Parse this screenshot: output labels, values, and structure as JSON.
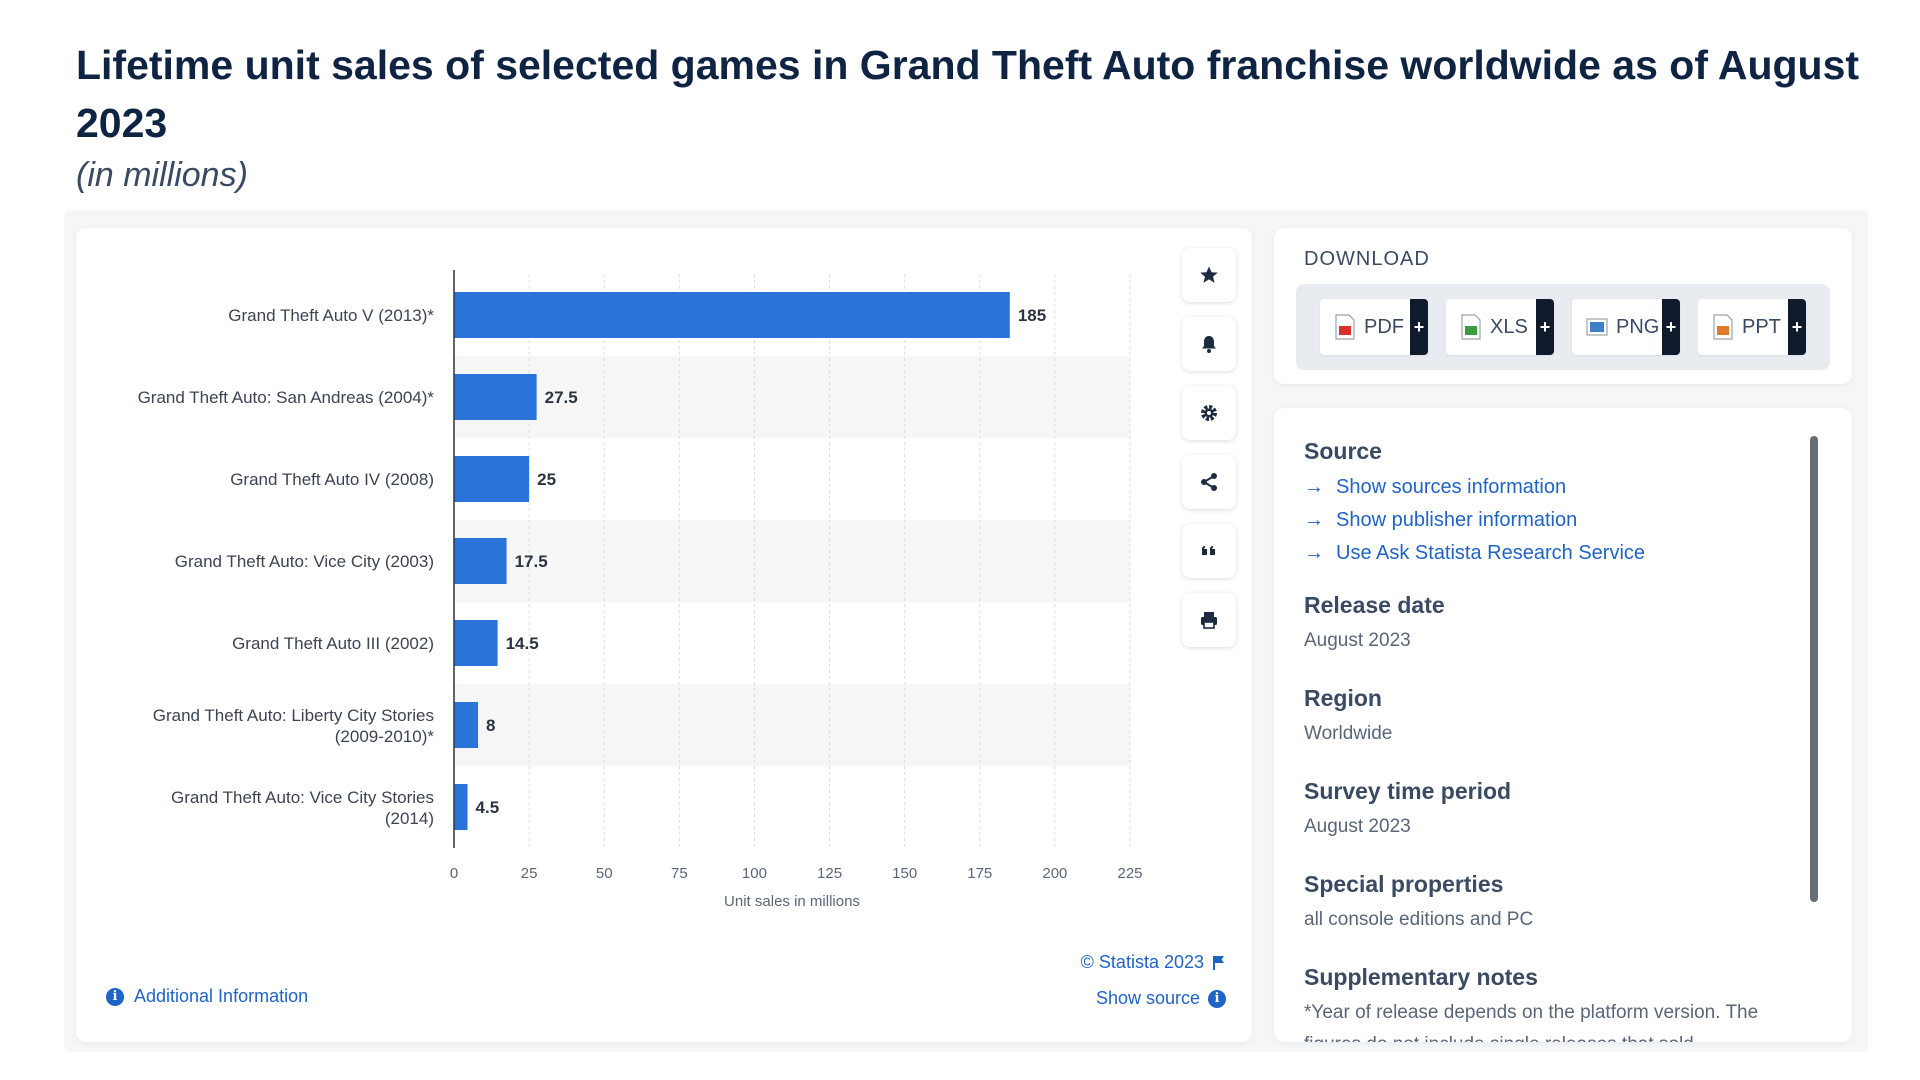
{
  "page": {
    "title": "Lifetime unit sales of selected games in Grand Theft Auto franchise worldwide as of August 2023",
    "subtitle": "(in millions)"
  },
  "chart_data": {
    "type": "bar",
    "orientation": "horizontal",
    "categories": [
      [
        "Grand Theft Auto V (2013)*"
      ],
      [
        "Grand Theft Auto: San Andreas (2004)*"
      ],
      [
        "Grand Theft Auto IV (2008)"
      ],
      [
        "Grand Theft Auto: Vice City (2003)"
      ],
      [
        "Grand Theft Auto III (2002)"
      ],
      [
        "Grand Theft Auto: Liberty City Stories",
        "(2009-2010)*"
      ],
      [
        "Grand Theft Auto: Vice City Stories",
        "(2014)"
      ]
    ],
    "values": [
      185,
      27.5,
      25,
      17.5,
      14.5,
      8,
      4.5
    ],
    "value_labels": [
      "185",
      "27.5",
      "25",
      "17.5",
      "14.5",
      "8",
      "4.5"
    ],
    "xticks": [
      0,
      25,
      50,
      75,
      100,
      125,
      150,
      175,
      200,
      225
    ],
    "xlim": [
      0,
      225
    ],
    "xlabel": "Unit sales in millions",
    "ylabel": "",
    "grid": true,
    "bar_color": "#2a73d9"
  },
  "tools": [
    {
      "name": "star-icon",
      "label": "Favorite"
    },
    {
      "name": "bell-icon",
      "label": "Notification"
    },
    {
      "name": "gear-icon",
      "label": "Settings"
    },
    {
      "name": "share-icon",
      "label": "Share"
    },
    {
      "name": "quote-icon",
      "label": "Cite"
    },
    {
      "name": "print-icon",
      "label": "Print"
    }
  ],
  "chart_footer": {
    "additional_info": "Additional Information",
    "copyright": "© Statista 2023",
    "show_source": "Show source"
  },
  "download": {
    "heading": "DOWNLOAD",
    "buttons": [
      {
        "label": "PDF",
        "color": "#d9302b"
      },
      {
        "label": "XLS",
        "color": "#3d9a3d"
      },
      {
        "label": "PNG",
        "color": "#3f7fc8"
      },
      {
        "label": "PPT",
        "color": "#e07b2a"
      }
    ]
  },
  "info": {
    "source_heading": "Source",
    "links": [
      "Show sources information",
      "Show publisher information",
      "Use Ask Statista Research Service"
    ],
    "release_date_heading": "Release date",
    "release_date": "August 2023",
    "region_heading": "Region",
    "region": "Worldwide",
    "survey_heading": "Survey time period",
    "survey": "August 2023",
    "special_heading": "Special properties",
    "special": "all console editions and PC",
    "notes_heading": "Supplementary notes",
    "notes": "*Year of release depends on the platform version. The figures do not include single releases that sold"
  },
  "colors": {
    "accent": "#1f63c7",
    "title": "#0f2443"
  }
}
